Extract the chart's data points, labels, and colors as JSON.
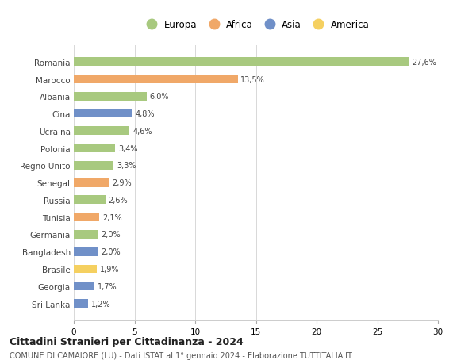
{
  "countries": [
    "Romania",
    "Marocco",
    "Albania",
    "Cina",
    "Ucraina",
    "Polonia",
    "Regno Unito",
    "Senegal",
    "Russia",
    "Tunisia",
    "Germania",
    "Bangladesh",
    "Brasile",
    "Georgia",
    "Sri Lanka"
  ],
  "values": [
    27.6,
    13.5,
    6.0,
    4.8,
    4.6,
    3.4,
    3.3,
    2.9,
    2.6,
    2.1,
    2.0,
    2.0,
    1.9,
    1.7,
    1.2
  ],
  "labels": [
    "27,6%",
    "13,5%",
    "6,0%",
    "4,8%",
    "4,6%",
    "3,4%",
    "3,3%",
    "2,9%",
    "2,6%",
    "2,1%",
    "2,0%",
    "2,0%",
    "1,9%",
    "1,7%",
    "1,2%"
  ],
  "continents": [
    "Europa",
    "Africa",
    "Europa",
    "Asia",
    "Europa",
    "Europa",
    "Europa",
    "Africa",
    "Europa",
    "Africa",
    "Europa",
    "Asia",
    "America",
    "Asia",
    "Asia"
  ],
  "colors": {
    "Europa": "#a8c97f",
    "Africa": "#f0a868",
    "Asia": "#7090c8",
    "America": "#f5d060"
  },
  "legend_order": [
    "Europa",
    "Africa",
    "Asia",
    "America"
  ],
  "xlim": [
    0,
    30
  ],
  "xticks": [
    0,
    5,
    10,
    15,
    20,
    25,
    30
  ],
  "title": "Cittadini Stranieri per Cittadinanza - 2024",
  "subtitle": "COMUNE DI CAMAIORE (LU) - Dati ISTAT al 1° gennaio 2024 - Elaborazione TUTTITALIA.IT",
  "background_color": "#ffffff",
  "grid_color": "#d8d8d8"
}
